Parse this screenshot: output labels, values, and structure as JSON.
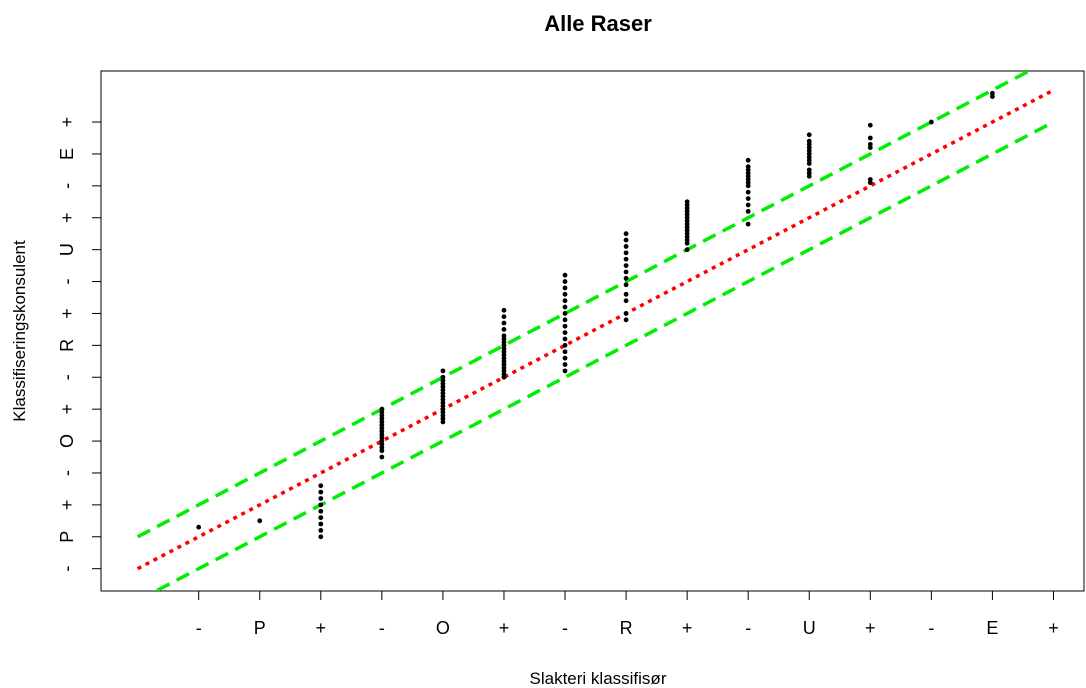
{
  "chart_data": {
    "type": "scatter",
    "title": "Alle Raser",
    "xlabel": "Slakteri klassifisør",
    "ylabel": "Klassifiseringskonsulent",
    "x_tick_labels": [
      "-",
      "P",
      "+",
      "-",
      "O",
      "+",
      "-",
      "R",
      "+",
      "-",
      "U",
      "+",
      "-",
      "E",
      "+"
    ],
    "y_tick_labels": [
      "-",
      "P",
      "+",
      "-",
      "O",
      "+",
      "-",
      "R",
      "+",
      "-",
      "U",
      "+",
      "-",
      "E",
      "+"
    ],
    "xlim": [
      -0.6,
      15.5
    ],
    "ylim": [
      -0.7,
      15.6
    ],
    "grid": false,
    "colors": {
      "points": "#000000",
      "identity_line": "#ff0000",
      "band_lines": "#00ee00"
    },
    "lines": [
      {
        "kind": "identity",
        "style": "dotted",
        "color": "#ff0000",
        "x": [
          0,
          15
        ],
        "y": [
          0,
          15
        ]
      },
      {
        "kind": "upper-band",
        "style": "dashed",
        "color": "#00ee00",
        "x": [
          0,
          15
        ],
        "y": [
          1,
          16
        ]
      },
      {
        "kind": "lower-band",
        "style": "dashed",
        "color": "#00ee00",
        "x": [
          0,
          15
        ],
        "y": [
          -1,
          14
        ]
      }
    ],
    "points": [
      {
        "x": 1,
        "y": 1.3
      },
      {
        "x": 2,
        "y": 1.5
      },
      {
        "x": 3,
        "y": 1.0
      },
      {
        "x": 3,
        "y": 1.2
      },
      {
        "x": 3,
        "y": 1.4
      },
      {
        "x": 3,
        "y": 1.6
      },
      {
        "x": 3,
        "y": 1.8
      },
      {
        "x": 3,
        "y": 2.0
      },
      {
        "x": 3,
        "y": 2.2
      },
      {
        "x": 3,
        "y": 2.4
      },
      {
        "x": 3,
        "y": 2.6
      },
      {
        "x": 4,
        "y": 3.5
      },
      {
        "x": 4,
        "y": 3.7
      },
      {
        "x": 4,
        "y": 3.8
      },
      {
        "x": 4,
        "y": 3.9
      },
      {
        "x": 4,
        "y": 4.0
      },
      {
        "x": 4,
        "y": 4.1
      },
      {
        "x": 4,
        "y": 4.2
      },
      {
        "x": 4,
        "y": 4.3
      },
      {
        "x": 4,
        "y": 4.4
      },
      {
        "x": 4,
        "y": 4.5
      },
      {
        "x": 4,
        "y": 4.6
      },
      {
        "x": 4,
        "y": 4.7
      },
      {
        "x": 4,
        "y": 4.8
      },
      {
        "x": 4,
        "y": 4.9
      },
      {
        "x": 4,
        "y": 5.0
      },
      {
        "x": 5,
        "y": 4.6
      },
      {
        "x": 5,
        "y": 4.7
      },
      {
        "x": 5,
        "y": 4.8
      },
      {
        "x": 5,
        "y": 4.9
      },
      {
        "x": 5,
        "y": 5.0
      },
      {
        "x": 5,
        "y": 5.1
      },
      {
        "x": 5,
        "y": 5.2
      },
      {
        "x": 5,
        "y": 5.3
      },
      {
        "x": 5,
        "y": 5.4
      },
      {
        "x": 5,
        "y": 5.5
      },
      {
        "x": 5,
        "y": 5.6
      },
      {
        "x": 5,
        "y": 5.7
      },
      {
        "x": 5,
        "y": 5.8
      },
      {
        "x": 5,
        "y": 5.9
      },
      {
        "x": 5,
        "y": 6.0
      },
      {
        "x": 5,
        "y": 6.2
      },
      {
        "x": 6,
        "y": 6.0
      },
      {
        "x": 6,
        "y": 6.1
      },
      {
        "x": 6,
        "y": 6.2
      },
      {
        "x": 6,
        "y": 6.3
      },
      {
        "x": 6,
        "y": 6.4
      },
      {
        "x": 6,
        "y": 6.5
      },
      {
        "x": 6,
        "y": 6.6
      },
      {
        "x": 6,
        "y": 6.7
      },
      {
        "x": 6,
        "y": 6.8
      },
      {
        "x": 6,
        "y": 6.9
      },
      {
        "x": 6,
        "y": 7.0
      },
      {
        "x": 6,
        "y": 7.1
      },
      {
        "x": 6,
        "y": 7.2
      },
      {
        "x": 6,
        "y": 7.3
      },
      {
        "x": 6,
        "y": 7.5
      },
      {
        "x": 6,
        "y": 7.7
      },
      {
        "x": 6,
        "y": 7.9
      },
      {
        "x": 6,
        "y": 8.1
      },
      {
        "x": 7,
        "y": 6.2
      },
      {
        "x": 7,
        "y": 6.4
      },
      {
        "x": 7,
        "y": 6.6
      },
      {
        "x": 7,
        "y": 6.8
      },
      {
        "x": 7,
        "y": 7.0
      },
      {
        "x": 7,
        "y": 7.2
      },
      {
        "x": 7,
        "y": 7.4
      },
      {
        "x": 7,
        "y": 7.6
      },
      {
        "x": 7,
        "y": 7.8
      },
      {
        "x": 7,
        "y": 8.0
      },
      {
        "x": 7,
        "y": 8.2
      },
      {
        "x": 7,
        "y": 8.4
      },
      {
        "x": 7,
        "y": 8.6
      },
      {
        "x": 7,
        "y": 8.8
      },
      {
        "x": 7,
        "y": 9.0
      },
      {
        "x": 7,
        "y": 9.2
      },
      {
        "x": 8,
        "y": 7.8
      },
      {
        "x": 8,
        "y": 8.0
      },
      {
        "x": 8,
        "y": 8.4
      },
      {
        "x": 8,
        "y": 8.6
      },
      {
        "x": 8,
        "y": 8.9
      },
      {
        "x": 8,
        "y": 9.1
      },
      {
        "x": 8,
        "y": 9.3
      },
      {
        "x": 8,
        "y": 9.5
      },
      {
        "x": 8,
        "y": 9.7
      },
      {
        "x": 8,
        "y": 9.9
      },
      {
        "x": 8,
        "y": 10.1
      },
      {
        "x": 8,
        "y": 10.3
      },
      {
        "x": 8,
        "y": 10.5
      },
      {
        "x": 9,
        "y": 10.0
      },
      {
        "x": 9,
        "y": 10.2
      },
      {
        "x": 9,
        "y": 10.3
      },
      {
        "x": 9,
        "y": 10.4
      },
      {
        "x": 9,
        "y": 10.5
      },
      {
        "x": 9,
        "y": 10.6
      },
      {
        "x": 9,
        "y": 10.7
      },
      {
        "x": 9,
        "y": 10.8
      },
      {
        "x": 9,
        "y": 10.9
      },
      {
        "x": 9,
        "y": 11.0
      },
      {
        "x": 9,
        "y": 11.1
      },
      {
        "x": 9,
        "y": 11.2
      },
      {
        "x": 9,
        "y": 11.3
      },
      {
        "x": 9,
        "y": 11.4
      },
      {
        "x": 9,
        "y": 11.5
      },
      {
        "x": 10,
        "y": 10.8
      },
      {
        "x": 10,
        "y": 11.2
      },
      {
        "x": 10,
        "y": 11.4
      },
      {
        "x": 10,
        "y": 11.6
      },
      {
        "x": 10,
        "y": 11.8
      },
      {
        "x": 10,
        "y": 12.0
      },
      {
        "x": 10,
        "y": 12.1
      },
      {
        "x": 10,
        "y": 12.2
      },
      {
        "x": 10,
        "y": 12.3
      },
      {
        "x": 10,
        "y": 12.4
      },
      {
        "x": 10,
        "y": 12.5
      },
      {
        "x": 10,
        "y": 12.6
      },
      {
        "x": 10,
        "y": 12.8
      },
      {
        "x": 11,
        "y": 12.3
      },
      {
        "x": 11,
        "y": 12.4
      },
      {
        "x": 11,
        "y": 12.5
      },
      {
        "x": 11,
        "y": 12.7
      },
      {
        "x": 11,
        "y": 12.8
      },
      {
        "x": 11,
        "y": 12.9
      },
      {
        "x": 11,
        "y": 13.0
      },
      {
        "x": 11,
        "y": 13.1
      },
      {
        "x": 11,
        "y": 13.2
      },
      {
        "x": 11,
        "y": 13.3
      },
      {
        "x": 11,
        "y": 13.4
      },
      {
        "x": 11,
        "y": 13.6
      },
      {
        "x": 12,
        "y": 12.1
      },
      {
        "x": 12,
        "y": 12.2
      },
      {
        "x": 12,
        "y": 13.2
      },
      {
        "x": 12,
        "y": 13.3
      },
      {
        "x": 12,
        "y": 13.5
      },
      {
        "x": 12,
        "y": 13.9
      },
      {
        "x": 13,
        "y": 14.0
      },
      {
        "x": 14,
        "y": 14.8
      },
      {
        "x": 14,
        "y": 14.9
      }
    ]
  }
}
